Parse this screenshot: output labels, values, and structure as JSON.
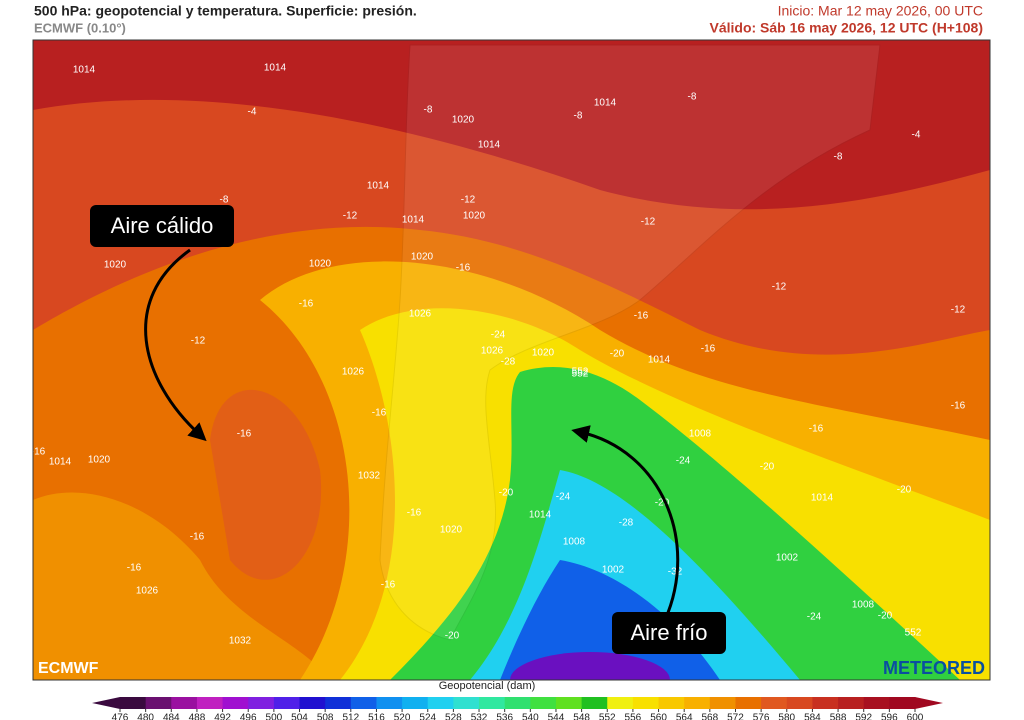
{
  "header": {
    "title": "500 hPa: geopotencial y temperatura. Superficie: presión.",
    "model": "ECMWF (0.10°)",
    "init": "Inicio: Mar 12 may 2026, 00 UTC",
    "valid": "Válido: Sáb 16 may 2026, 12 UTC (H+108)"
  },
  "map": {
    "annotations": [
      "Aire cálido",
      "Aire frío"
    ],
    "logos": [
      "ECMWF",
      "METEORED"
    ],
    "labels": [
      "1014",
      "1014",
      "-4",
      "-8",
      "1020",
      "1014",
      "1014",
      "-8",
      "-8",
      "-4",
      "-8",
      "-8",
      "1014",
      "-12",
      "1014",
      "-12",
      "1020",
      "-12",
      "1020",
      "1020",
      "-16",
      "-16",
      "1020",
      "1026",
      "-12",
      "-12",
      "-16",
      "-24",
      "1026",
      "1020",
      "-20",
      "1014",
      "-16",
      "1026",
      "-12",
      "-28",
      "552",
      "-16",
      "-16",
      "-16",
      "1008",
      "-24",
      "-20",
      "1014",
      "1020",
      "-16",
      "-24",
      "-20",
      "1032",
      "-16",
      "1014",
      "-20",
      "1008",
      "-28",
      "-20",
      "1014",
      "1020",
      "-16",
      "-16",
      "1002",
      "1002",
      "-16",
      "-32",
      "1026",
      "-16",
      "1008",
      "-20",
      "-24",
      "1032",
      "-20",
      "552",
      "552"
    ]
  },
  "colorbar": {
    "title": "Geopotencial (dam)",
    "ticks": [
      476,
      480,
      484,
      488,
      492,
      496,
      500,
      504,
      508,
      512,
      516,
      520,
      524,
      528,
      532,
      536,
      540,
      544,
      548,
      552,
      556,
      560,
      564,
      568,
      572,
      576,
      580,
      584,
      588,
      592,
      596,
      600
    ],
    "colors": [
      "#3a0a3f",
      "#6a1070",
      "#9a10a0",
      "#c020c0",
      "#a010d0",
      "#8020e0",
      "#5020e8",
      "#2010d0",
      "#1030d8",
      "#1060e8",
      "#1090f0",
      "#10b0f0",
      "#20d0f0",
      "#30e0d0",
      "#30e8a0",
      "#30e070",
      "#40e040",
      "#60e020",
      "#20c020",
      "#f0f010",
      "#f8e000",
      "#f8c800",
      "#f8b000",
      "#f09000",
      "#e87000",
      "#e05820",
      "#d84820",
      "#c83020",
      "#b82020",
      "#a81020",
      "#a00820"
    ]
  }
}
